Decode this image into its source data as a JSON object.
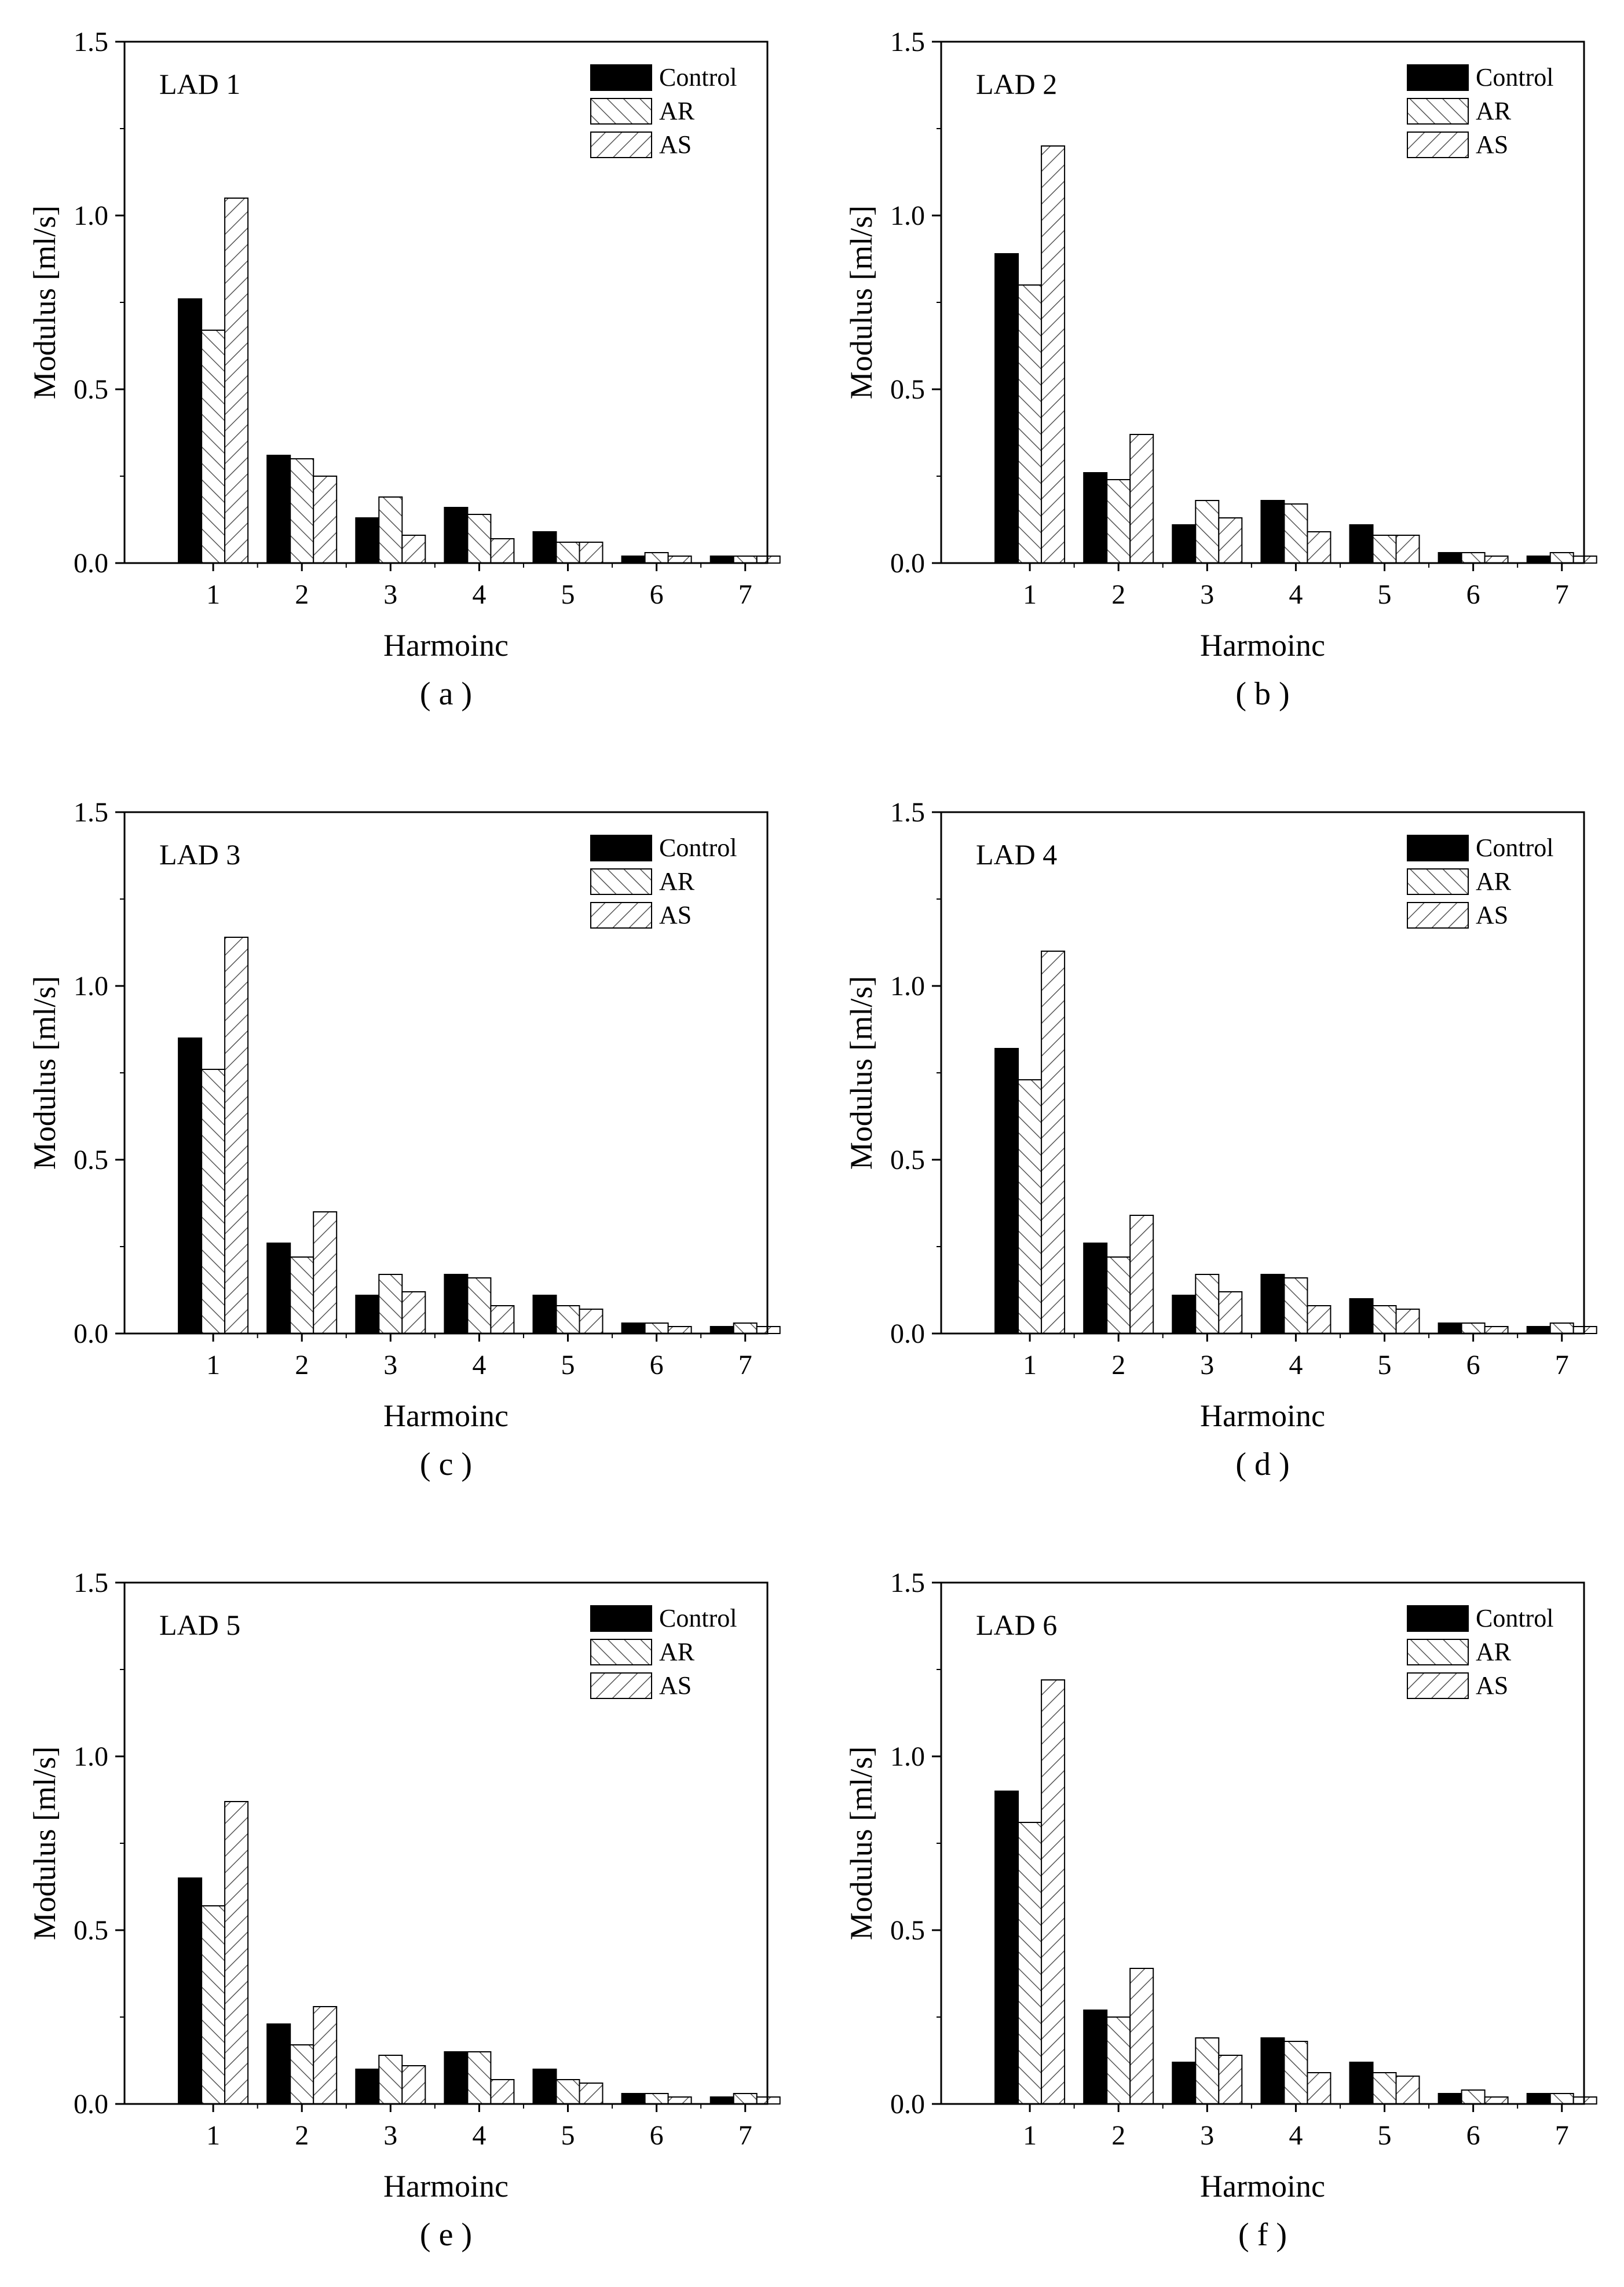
{
  "colors": {
    "control": "#000000",
    "pattern_stroke": "#555555",
    "axis": "#000000",
    "background": "#ffffff"
  },
  "chart_data": [
    {
      "type": "bar",
      "title": "LAD 1",
      "caption": "( a )",
      "xlabel": "Harmoinc",
      "ylabel": "Modulus [ml/s]",
      "ylim": [
        0,
        1.5
      ],
      "yticks": [
        "0.0",
        "0.5",
        "1.0",
        "1.5"
      ],
      "categories": [
        "1",
        "2",
        "3",
        "4",
        "5",
        "6",
        "7"
      ],
      "legend": "top-right",
      "series": [
        {
          "name": "Control",
          "values": [
            0.76,
            0.31,
            0.13,
            0.16,
            0.09,
            0.02,
            0.02
          ]
        },
        {
          "name": "AR",
          "values": [
            0.67,
            0.3,
            0.19,
            0.14,
            0.06,
            0.03,
            0.02
          ]
        },
        {
          "name": "AS",
          "values": [
            1.05,
            0.25,
            0.08,
            0.07,
            0.06,
            0.02,
            0.02
          ]
        }
      ]
    },
    {
      "type": "bar",
      "title": "LAD 2",
      "caption": "( b )",
      "xlabel": "Harmoinc",
      "ylabel": "Modulus [ml/s]",
      "ylim": [
        0,
        1.5
      ],
      "yticks": [
        "0.0",
        "0.5",
        "1.0",
        "1.5"
      ],
      "categories": [
        "1",
        "2",
        "3",
        "4",
        "5",
        "6",
        "7"
      ],
      "legend": "top-right",
      "series": [
        {
          "name": "Control",
          "values": [
            0.89,
            0.26,
            0.11,
            0.18,
            0.11,
            0.03,
            0.02
          ]
        },
        {
          "name": "AR",
          "values": [
            0.8,
            0.24,
            0.18,
            0.17,
            0.08,
            0.03,
            0.03
          ]
        },
        {
          "name": "AS",
          "values": [
            1.2,
            0.37,
            0.13,
            0.09,
            0.08,
            0.02,
            0.02
          ]
        }
      ]
    },
    {
      "type": "bar",
      "title": "LAD 3",
      "caption": "( c )",
      "xlabel": "Harmoinc",
      "ylabel": "Modulus [ml/s]",
      "ylim": [
        0,
        1.5
      ],
      "yticks": [
        "0.0",
        "0.5",
        "1.0",
        "1.5"
      ],
      "categories": [
        "1",
        "2",
        "3",
        "4",
        "5",
        "6",
        "7"
      ],
      "legend": "top-right",
      "series": [
        {
          "name": "Control",
          "values": [
            0.85,
            0.26,
            0.11,
            0.17,
            0.11,
            0.03,
            0.02
          ]
        },
        {
          "name": "AR",
          "values": [
            0.76,
            0.22,
            0.17,
            0.16,
            0.08,
            0.03,
            0.03
          ]
        },
        {
          "name": "AS",
          "values": [
            1.14,
            0.35,
            0.12,
            0.08,
            0.07,
            0.02,
            0.02
          ]
        }
      ]
    },
    {
      "type": "bar",
      "title": "LAD 4",
      "caption": "( d )",
      "xlabel": "Harmoinc",
      "ylabel": "Modulus [ml/s]",
      "ylim": [
        0,
        1.5
      ],
      "yticks": [
        "0.0",
        "0.5",
        "1.0",
        "1.5"
      ],
      "categories": [
        "1",
        "2",
        "3",
        "4",
        "5",
        "6",
        "7"
      ],
      "legend": "top-right",
      "series": [
        {
          "name": "Control",
          "values": [
            0.82,
            0.26,
            0.11,
            0.17,
            0.1,
            0.03,
            0.02
          ]
        },
        {
          "name": "AR",
          "values": [
            0.73,
            0.22,
            0.17,
            0.16,
            0.08,
            0.03,
            0.03
          ]
        },
        {
          "name": "AS",
          "values": [
            1.1,
            0.34,
            0.12,
            0.08,
            0.07,
            0.02,
            0.02
          ]
        }
      ]
    },
    {
      "type": "bar",
      "title": "LAD 5",
      "caption": "( e )",
      "xlabel": "Harmoinc",
      "ylabel": "Modulus [ml/s]",
      "ylim": [
        0,
        1.5
      ],
      "yticks": [
        "0.0",
        "0.5",
        "1.0",
        "1.5"
      ],
      "categories": [
        "1",
        "2",
        "3",
        "4",
        "5",
        "6",
        "7"
      ],
      "legend": "top-right",
      "series": [
        {
          "name": "Control",
          "values": [
            0.65,
            0.23,
            0.1,
            0.15,
            0.1,
            0.03,
            0.02
          ]
        },
        {
          "name": "AR",
          "values": [
            0.57,
            0.17,
            0.14,
            0.15,
            0.07,
            0.03,
            0.03
          ]
        },
        {
          "name": "AS",
          "values": [
            0.87,
            0.28,
            0.11,
            0.07,
            0.06,
            0.02,
            0.02
          ]
        }
      ]
    },
    {
      "type": "bar",
      "title": "LAD 6",
      "caption": "( f )",
      "xlabel": "Harmoinc",
      "ylabel": "Modulus [ml/s]",
      "ylim": [
        0,
        1.5
      ],
      "yticks": [
        "0.0",
        "0.5",
        "1.0",
        "1.5"
      ],
      "categories": [
        "1",
        "2",
        "3",
        "4",
        "5",
        "6",
        "7"
      ],
      "legend": "top-right",
      "series": [
        {
          "name": "Control",
          "values": [
            0.9,
            0.27,
            0.12,
            0.19,
            0.12,
            0.03,
            0.03
          ]
        },
        {
          "name": "AR",
          "values": [
            0.81,
            0.25,
            0.19,
            0.18,
            0.09,
            0.04,
            0.03
          ]
        },
        {
          "name": "AS",
          "values": [
            1.22,
            0.39,
            0.14,
            0.09,
            0.08,
            0.02,
            0.02
          ]
        }
      ]
    }
  ]
}
